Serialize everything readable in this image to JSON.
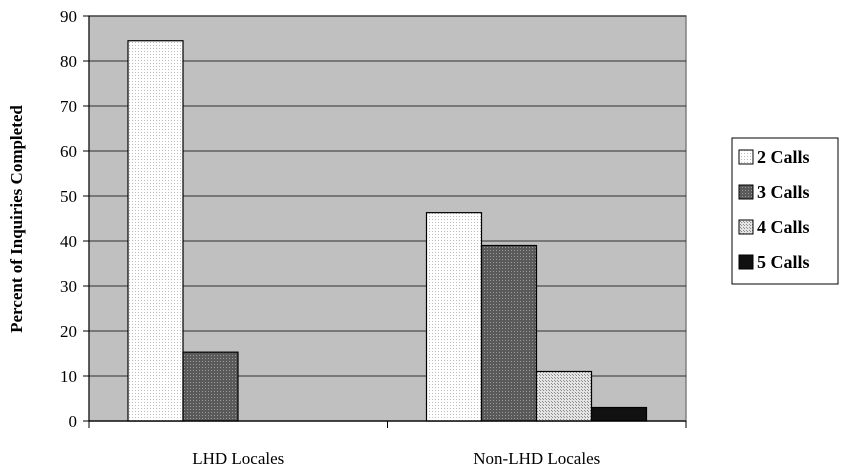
{
  "chart_data": {
    "type": "bar",
    "categories": [
      "LHD Locales",
      "Non-LHD Locales"
    ],
    "series": [
      {
        "name": "2 Calls",
        "values": [
          84.5,
          46.3
        ],
        "color": "#f4f4f4"
      },
      {
        "name": "3 Calls",
        "values": [
          15.3,
          39.0
        ],
        "color": "#6e6e6e"
      },
      {
        "name": "4 Calls",
        "values": [
          0,
          11.0
        ],
        "color": "#d6d6d6"
      },
      {
        "name": "5 Calls",
        "values": [
          0,
          3.0
        ],
        "color": "#111111"
      }
    ],
    "ylabel": "Percent of Inquiries Completed",
    "xlabel": "",
    "ylim": [
      0,
      90
    ],
    "yticks": [
      0,
      10,
      20,
      30,
      40,
      50,
      60,
      70,
      80,
      90
    ],
    "grid": true,
    "legend_position": "right",
    "plot_background": "#c0c0c0"
  }
}
